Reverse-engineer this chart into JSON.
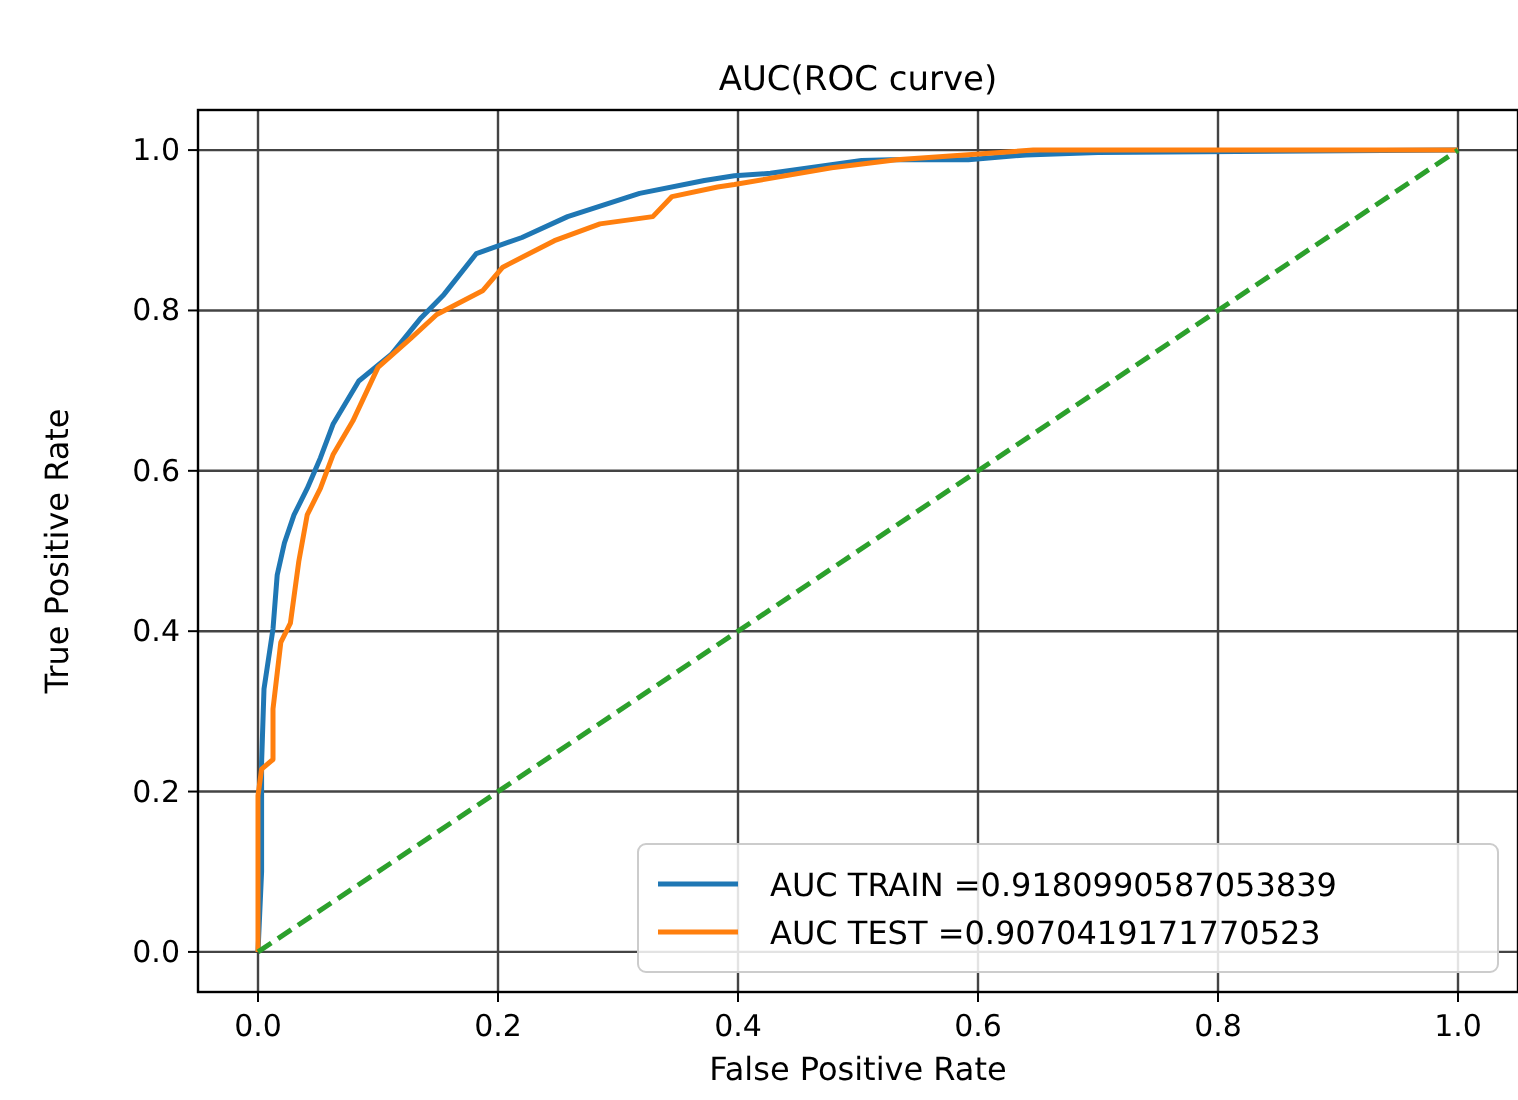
{
  "chart_data": {
    "type": "line",
    "title": "AUC(ROC curve)",
    "xlabel": "False Positive Rate",
    "ylabel": "True Positive Rate",
    "xlim": [
      -0.05,
      1.05
    ],
    "ylim": [
      -0.05,
      1.05
    ],
    "xticks": [
      {
        "value": 0,
        "label": "0.0"
      },
      {
        "value": 0.2,
        "label": "0.2"
      },
      {
        "value": 0.4,
        "label": "0.4"
      },
      {
        "value": 0.6,
        "label": "0.6"
      },
      {
        "value": 0.8,
        "label": "0.8"
      },
      {
        "value": 1,
        "label": "1.0"
      }
    ],
    "yticks": [
      {
        "value": 0,
        "label": "0.0"
      },
      {
        "value": 0.2,
        "label": "0.2"
      },
      {
        "value": 0.4,
        "label": "0.4"
      },
      {
        "value": 0.6,
        "label": "0.6"
      },
      {
        "value": 0.8,
        "label": "0.8"
      },
      {
        "value": 1,
        "label": "1.0"
      }
    ],
    "grid": true,
    "legend": "bottom right",
    "series": [
      {
        "name": "AUC TRAIN =0.9180990587053839",
        "color": "#1f77b4",
        "x": [
          0,
          0.003,
          0.003,
          0.005,
          0.0125,
          0.016,
          0.022,
          0.03,
          0.041,
          0.052,
          0.0625,
          0.084,
          0.111,
          0.136,
          0.155,
          0.182,
          0.22,
          0.258,
          0.318,
          0.372,
          0.397,
          0.427,
          0.503,
          0.527,
          0.592,
          0.64,
          0.7,
          1
        ],
        "values": [
          0,
          0.1,
          0.236,
          0.328,
          0.403,
          0.47,
          0.51,
          0.545,
          0.578,
          0.616,
          0.658,
          0.712,
          0.745,
          0.791,
          0.82,
          0.871,
          0.891,
          0.917,
          0.946,
          0.962,
          0.968,
          0.971,
          0.987,
          0.988,
          0.988,
          0.994,
          0.997,
          1
        ]
      },
      {
        "name": "AUC TEST =0.9070419171770523",
        "color": "#ff7f0e",
        "x": [
          0,
          0,
          0.003,
          0.0125,
          0.0125,
          0.019,
          0.027,
          0.034,
          0.041,
          0.052,
          0.0625,
          0.079,
          0.1,
          0.128,
          0.149,
          0.1875,
          0.204,
          0.247,
          0.285,
          0.329,
          0.345,
          0.383,
          0.397,
          0.478,
          0.532,
          0.646,
          1
        ],
        "values": [
          0,
          0.195,
          0.228,
          0.24,
          0.303,
          0.386,
          0.41,
          0.487,
          0.545,
          0.578,
          0.62,
          0.662,
          0.729,
          0.766,
          0.795,
          0.825,
          0.854,
          0.887,
          0.908,
          0.917,
          0.942,
          0.954,
          0.957,
          0.978,
          0.988,
          1,
          1
        ]
      },
      {
        "color": "#2ca02c",
        "line_style": "dashed",
        "x": [
          0,
          1
        ],
        "values": [
          0,
          1
        ]
      }
    ]
  }
}
